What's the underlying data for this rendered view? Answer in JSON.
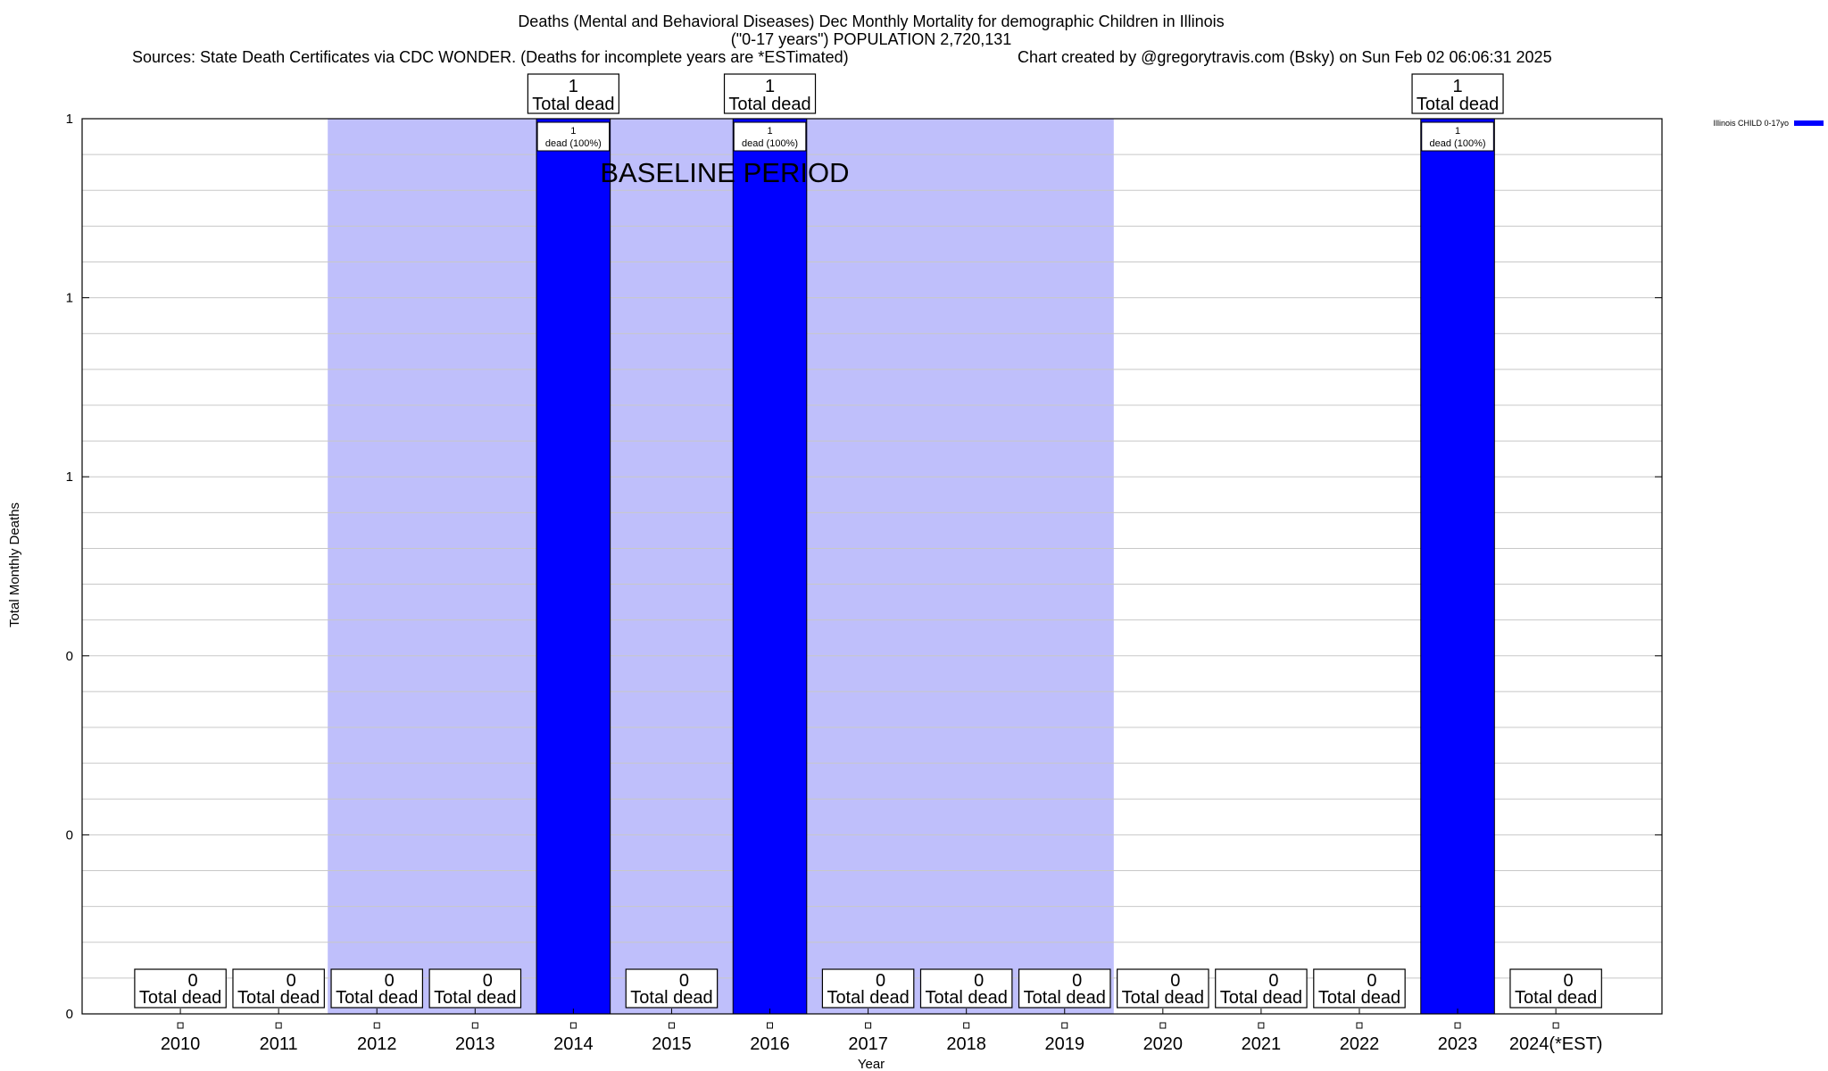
{
  "chart_data": {
    "type": "bar",
    "title_line1": "Deaths (Mental and Behavioral Diseases) Dec Monthly Mortality for demographic Children in Illinois",
    "title_line2": "(\"0-17 years\") POPULATION 2,720,131",
    "sources": "Sources: State Death Certificates via CDC WONDER. (Deaths for incomplete years are *ESTimated)",
    "credit": "Chart created by @gregorytravis.com (Bsky) on Sun Feb 02 06:06:31 2025",
    "xlabel": "Year",
    "ylabel": "Total Monthly Deaths",
    "categories": [
      "2010",
      "2011",
      "2012",
      "2013",
      "2014",
      "2015",
      "2016",
      "2017",
      "2018",
      "2019",
      "2020",
      "2021",
      "2022",
      "2023",
      "2024(*EST)"
    ],
    "series": [
      {
        "name": "Illinois CHILD 0-17yo",
        "color": "#0000ff",
        "values": [
          0,
          0,
          0,
          0,
          1,
          0,
          1,
          0,
          0,
          0,
          0,
          0,
          0,
          1,
          0
        ]
      }
    ],
    "ylim": [
      0,
      1
    ],
    "y_tick_values": [
      0,
      0.2,
      0.4,
      0.6,
      0.8,
      1
    ],
    "y_tick_labels": [
      "0",
      "0",
      "0",
      "1",
      "1",
      "1"
    ],
    "baseline_period": {
      "label": "BASELINE PERIOD",
      "from": "2012",
      "to": "2019",
      "color": "#bfbffb"
    },
    "total_label_suffix": "Total dead",
    "bar_label_suffix": "dead (100%)",
    "legend_position": "top-right",
    "grid": true
  }
}
